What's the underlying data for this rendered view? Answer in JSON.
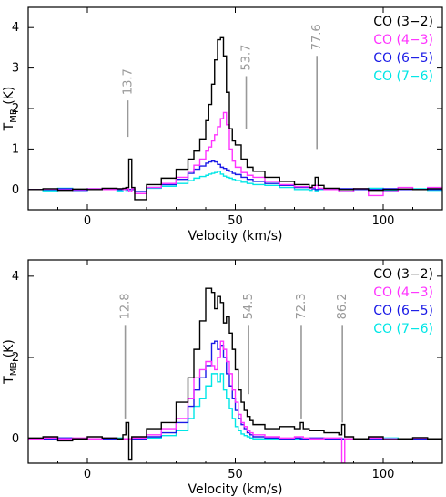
{
  "colors": {
    "co32": "#000000",
    "co43": "#ff33ff",
    "co65": "#1a1ae6",
    "co76": "#00e6e6",
    "marker": "#999999",
    "axis": "#000000"
  },
  "chart_data": [
    {
      "type": "line",
      "panel": "top",
      "title": "",
      "xlabel": "Velocity (km/s)",
      "ylabel": "T",
      "ylabel_sub": "MB",
      "ylabel_unit": "(K)",
      "xlim": [
        -20,
        120
      ],
      "ylim": [
        -0.5,
        4.5
      ],
      "xticks": [
        0,
        50,
        100
      ],
      "xtick_labels": [
        "0",
        "50",
        "100"
      ],
      "yticks": [
        0,
        1,
        2,
        3,
        4
      ],
      "ytick_labels": [
        "0",
        "1",
        "2",
        "3",
        "4"
      ],
      "grid": false,
      "legend_position": "top-right",
      "style": "step",
      "x": [
        -20,
        -15,
        -10,
        -5,
        0,
        5,
        10,
        12,
        13,
        14,
        15,
        16,
        20,
        25,
        30,
        34,
        36,
        38,
        40,
        41,
        42,
        43,
        44,
        45,
        46,
        47,
        48,
        49,
        50,
        52,
        54,
        56,
        60,
        65,
        70,
        75,
        76,
        77,
        78,
        80,
        85,
        90,
        95,
        100,
        105,
        110,
        115,
        120
      ],
      "series": [
        {
          "name": "CO (3−2)",
          "color_key": "co32",
          "values": [
            0.0,
            0.02,
            -0.02,
            0.01,
            0.0,
            0.03,
            0.02,
            0.03,
            0.05,
            0.75,
            0.05,
            -0.25,
            0.12,
            0.28,
            0.5,
            0.75,
            0.95,
            1.25,
            1.7,
            2.1,
            2.6,
            3.2,
            3.7,
            3.75,
            3.3,
            2.4,
            1.5,
            1.2,
            1.1,
            0.75,
            0.55,
            0.45,
            0.3,
            0.2,
            0.12,
            0.05,
            0.1,
            0.3,
            0.1,
            0.03,
            0.0,
            0.02,
            -0.02,
            0.0,
            0.01,
            0.0,
            0.02,
            0.0
          ]
        },
        {
          "name": "CO (4−3)",
          "color_key": "co43",
          "values": [
            0.0,
            0.01,
            -0.01,
            0.0,
            0.02,
            0.0,
            0.02,
            0.0,
            0.02,
            -0.05,
            0.02,
            -0.1,
            0.05,
            0.15,
            0.3,
            0.45,
            0.6,
            0.75,
            0.95,
            1.05,
            1.2,
            1.35,
            1.55,
            1.75,
            1.9,
            1.6,
            1.0,
            0.7,
            0.55,
            0.42,
            0.35,
            0.3,
            0.2,
            0.12,
            0.07,
            0.03,
            0.05,
            0.1,
            0.03,
            0.0,
            -0.05,
            0.02,
            -0.15,
            -0.05,
            0.05,
            0.0,
            0.05,
            0.0
          ]
        },
        {
          "name": "CO (6−5)",
          "color_key": "co65",
          "values": [
            0.0,
            0.0,
            0.02,
            -0.02,
            0.0,
            0.02,
            0.0,
            0.02,
            0.0,
            0.0,
            0.0,
            -0.05,
            0.05,
            0.12,
            0.25,
            0.4,
            0.5,
            0.58,
            0.65,
            0.68,
            0.7,
            0.68,
            0.62,
            0.55,
            0.52,
            0.48,
            0.45,
            0.4,
            0.37,
            0.3,
            0.25,
            0.2,
            0.15,
            0.1,
            0.05,
            0.03,
            0.02,
            0.0,
            0.02,
            0.0,
            0.02,
            0.0,
            0.0,
            0.02,
            0.0,
            0.0,
            0.0,
            0.0
          ]
        },
        {
          "name": "CO (7−6)",
          "color_key": "co76",
          "values": [
            0.0,
            -0.03,
            0.03,
            -0.02,
            0.02,
            0.0,
            -0.03,
            0.02,
            -0.02,
            0.0,
            0.02,
            -0.05,
            0.03,
            0.08,
            0.15,
            0.22,
            0.28,
            0.32,
            0.35,
            0.38,
            0.4,
            0.42,
            0.45,
            0.38,
            0.33,
            0.3,
            0.28,
            0.25,
            0.22,
            0.18,
            0.15,
            0.12,
            0.1,
            0.05,
            0.0,
            -0.02,
            0.02,
            -0.03,
            0.0,
            0.02,
            -0.05,
            0.0,
            0.03,
            -0.02,
            0.0,
            0.02,
            -0.02,
            0.0
          ]
        }
      ],
      "annotations": [
        {
          "label": "13.7",
          "x": 13.7,
          "y_from": 1.3,
          "y_to": 2.2
        },
        {
          "label": "53.7",
          "x": 53.7,
          "y_from": 1.5,
          "y_to": 2.8
        },
        {
          "label": "77.6",
          "x": 77.6,
          "y_from": 1.0,
          "y_to": 3.3
        }
      ]
    },
    {
      "type": "line",
      "panel": "bottom",
      "title": "",
      "xlabel": "Velocity (km/s)",
      "ylabel": "T",
      "ylabel_sub": "MB",
      "ylabel_unit": "(K)",
      "xlim": [
        -20,
        120
      ],
      "ylim": [
        -0.6,
        4.4
      ],
      "xticks": [
        0,
        50,
        100
      ],
      "xtick_labels": [
        "0",
        "50",
        "100"
      ],
      "yticks": [
        0,
        2,
        4
      ],
      "ytick_labels": [
        "0",
        "2",
        "4"
      ],
      "grid": false,
      "legend_position": "top-right",
      "style": "step",
      "x": [
        -20,
        -15,
        -10,
        -5,
        0,
        5,
        10,
        12,
        13,
        14,
        15,
        20,
        25,
        30,
        34,
        36,
        38,
        40,
        42,
        43,
        44,
        45,
        46,
        47,
        48,
        49,
        50,
        51,
        52,
        53,
        54,
        55,
        56,
        60,
        65,
        70,
        72,
        73,
        75,
        80,
        85,
        86,
        87,
        90,
        95,
        100,
        105,
        110,
        115,
        120
      ],
      "series": [
        {
          "name": "CO (3−2)",
          "color_key": "co32",
          "values": [
            0.02,
            0.05,
            -0.05,
            0.0,
            0.05,
            0.02,
            0.0,
            0.1,
            0.4,
            -0.5,
            0.05,
            0.25,
            0.4,
            0.9,
            1.5,
            2.2,
            2.9,
            3.7,
            3.6,
            3.2,
            3.5,
            3.35,
            2.85,
            3.0,
            2.6,
            2.2,
            1.7,
            1.2,
            0.9,
            0.7,
            0.55,
            0.45,
            0.35,
            0.25,
            0.3,
            0.25,
            0.4,
            0.25,
            0.2,
            0.15,
            0.1,
            0.35,
            0.05,
            0.0,
            0.05,
            -0.02,
            0.0,
            0.03,
            0.0,
            0.02
          ]
        },
        {
          "name": "CO (4−3)",
          "color_key": "co43",
          "values": [
            0.0,
            0.02,
            0.0,
            0.02,
            0.0,
            0.02,
            0.0,
            0.0,
            0.0,
            0.0,
            0.02,
            0.1,
            0.25,
            0.5,
            1.0,
            1.5,
            1.7,
            1.9,
            1.8,
            1.7,
            2.0,
            2.4,
            2.2,
            1.9,
            1.6,
            1.2,
            0.9,
            0.6,
            0.4,
            0.3,
            0.2,
            0.15,
            0.1,
            0.05,
            0.02,
            0.05,
            0.05,
            0.02,
            0.0,
            0.02,
            0.02,
            -0.6,
            0.0,
            0.0,
            0.02,
            0.0,
            0.0,
            0.02,
            0.0,
            0.0
          ]
        },
        {
          "name": "CO (6−5)",
          "color_key": "co65",
          "values": [
            0.0,
            0.0,
            0.02,
            0.0,
            0.0,
            0.0,
            0.0,
            0.0,
            0.0,
            0.0,
            0.0,
            0.05,
            0.15,
            0.4,
            0.8,
            1.2,
            1.5,
            1.8,
            2.35,
            2.4,
            2.2,
            2.3,
            2.0,
            1.6,
            1.3,
            1.0,
            0.7,
            0.5,
            0.35,
            0.25,
            0.15,
            0.1,
            0.05,
            0.02,
            0.0,
            0.02,
            0.0,
            0.0,
            0.02,
            0.0,
            0.0,
            0.0,
            0.0,
            0.0,
            0.0,
            0.0,
            0.0,
            0.0,
            0.0,
            0.0
          ]
        },
        {
          "name": "CO (7−6)",
          "color_key": "co76",
          "values": [
            0.0,
            -0.02,
            0.02,
            0.0,
            -0.02,
            0.0,
            0.02,
            -0.02,
            0.0,
            0.0,
            0.0,
            0.02,
            0.08,
            0.2,
            0.5,
            0.8,
            1.0,
            1.3,
            1.6,
            1.6,
            1.4,
            1.6,
            1.2,
            1.0,
            0.75,
            0.5,
            0.3,
            0.2,
            0.12,
            0.08,
            0.05,
            0.02,
            0.0,
            0.0,
            -0.02,
            0.0,
            0.02,
            0.0,
            0.0,
            0.0,
            0.02,
            -0.02,
            0.0,
            0.0,
            0.0,
            0.02,
            0.0,
            0.0,
            0.0,
            0.0
          ]
        }
      ],
      "annotations": [
        {
          "label": "12.8",
          "x": 12.8,
          "y_from": 0.5,
          "y_to": 2.8
        },
        {
          "label": "54.5",
          "x": 54.5,
          "y_from": 1.1,
          "y_to": 2.8
        },
        {
          "label": "72.3",
          "x": 72.3,
          "y_from": 0.5,
          "y_to": 2.8
        },
        {
          "label": "86.2",
          "x": 86.2,
          "y_from": 0.4,
          "y_to": 2.8
        }
      ]
    }
  ]
}
